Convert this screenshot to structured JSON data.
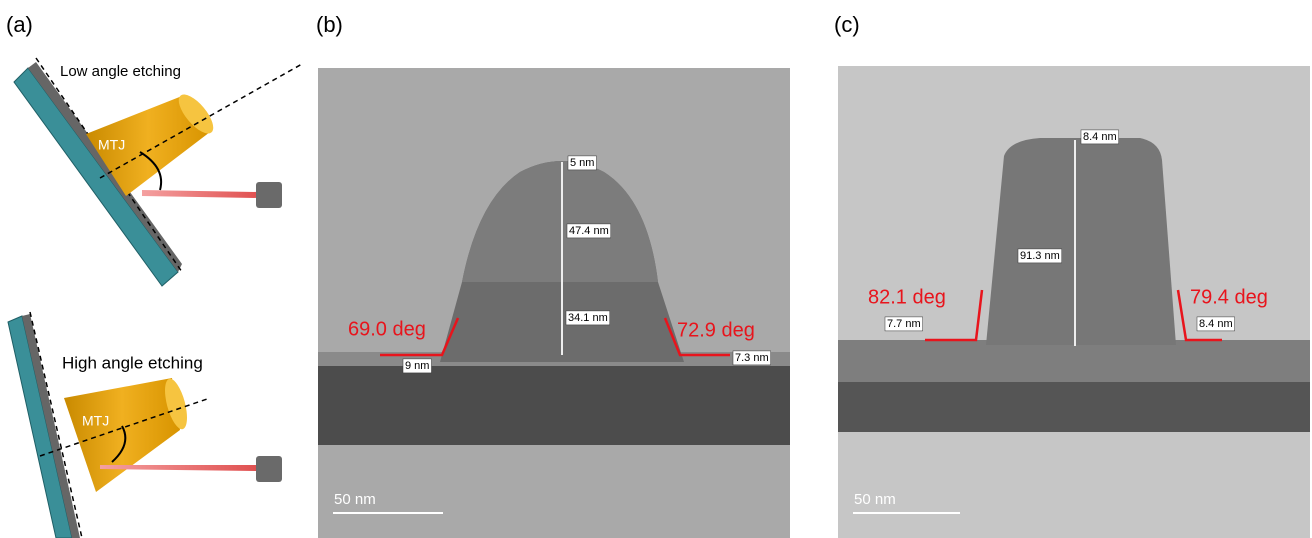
{
  "panels": [
    {
      "label": "(a)",
      "diagrams": [
        {
          "title": "Low angle etching",
          "device": "MTJ"
        },
        {
          "title": "High angle etching",
          "device": "MTJ"
        }
      ]
    },
    {
      "label": "(b)",
      "angles": [
        "69.0 deg",
        "72.9 deg"
      ],
      "measurements": [
        "5 nm",
        "47.4 nm",
        "34.1 nm",
        "9 nm",
        "7.3 nm"
      ],
      "scale_bar": "50 nm"
    },
    {
      "label": "(c)",
      "angles": [
        "82.1 deg",
        "79.4 deg"
      ],
      "measurements": [
        "8.4 nm",
        "91.3 nm",
        "7.7 nm",
        "8.4 nm"
      ],
      "scale_bar": "50 nm"
    }
  ]
}
